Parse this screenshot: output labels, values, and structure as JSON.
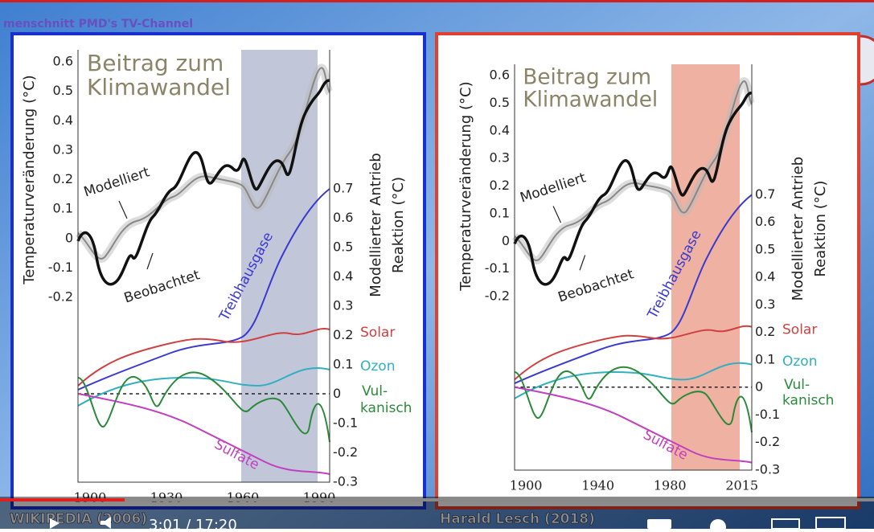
{
  "watermark": "menschnitt PMD's TV-Channel",
  "panels": [
    {
      "title_lines": [
        "Beitrag zum",
        "Klimawandel"
      ],
      "left_axis_label": "Temperaturveränderung (°C)",
      "right_axis_label_lines": [
        "Modellierter Antrieb",
        "Reaktion (°C)"
      ],
      "left_ticks": [
        "0.6",
        "0.5",
        "0.4",
        "0.3",
        "0.2",
        "0.1",
        "0",
        "-0.1",
        "-0.2"
      ],
      "right_ticks": [
        "0.7",
        "0.6",
        "0.5",
        "0.4",
        "0.3",
        "0.2",
        "0.1",
        "0",
        "-0.1",
        "-0.2",
        "-0.3"
      ],
      "x_ticks": [
        "1900",
        "1930",
        "1960",
        "1990"
      ],
      "labels": {
        "modeled": "Modelliert",
        "observed": "Beobachtet",
        "greenhouse": "Treibhausgase",
        "solar": "Solar",
        "ozone": "Ozon",
        "volcanic": [
          "Vul-",
          "kanisch"
        ],
        "sulfate": "Sulfate"
      },
      "source": "WIKIPEDIA (2006)"
    },
    {
      "title_lines": [
        "Beitrag zum",
        "Klimawandel"
      ],
      "left_axis_label": "Temperaturveränderung (°C)",
      "right_axis_label_lines": [
        "Modellierter Antrieb",
        "Reaktion (°C)"
      ],
      "left_ticks": [
        "0.6",
        "0.5",
        "0.4",
        "0.3",
        "0.2",
        "0.1",
        "0",
        "-0.1",
        "-0.2"
      ],
      "right_ticks": [
        "0.7",
        "0.6",
        "0.5",
        "0.4",
        "0.3",
        "0.2",
        "0.1",
        "0",
        "-0.1",
        "-0.2",
        "-0.3"
      ],
      "x_ticks": [
        "1900",
        "1940",
        "1980",
        "2015"
      ],
      "labels": {
        "modeled": "Modelliert",
        "observed": "Beobachtet",
        "greenhouse": "Treibhausgase",
        "solar": "Solar",
        "ozone": "Ozon",
        "volcanic": [
          "Vul-",
          "kanisch"
        ],
        "sulfate": "Sulfate"
      },
      "source": "Harald Lesch (2018)"
    }
  ],
  "player": {
    "time": "3:01 / 17:20"
  }
}
